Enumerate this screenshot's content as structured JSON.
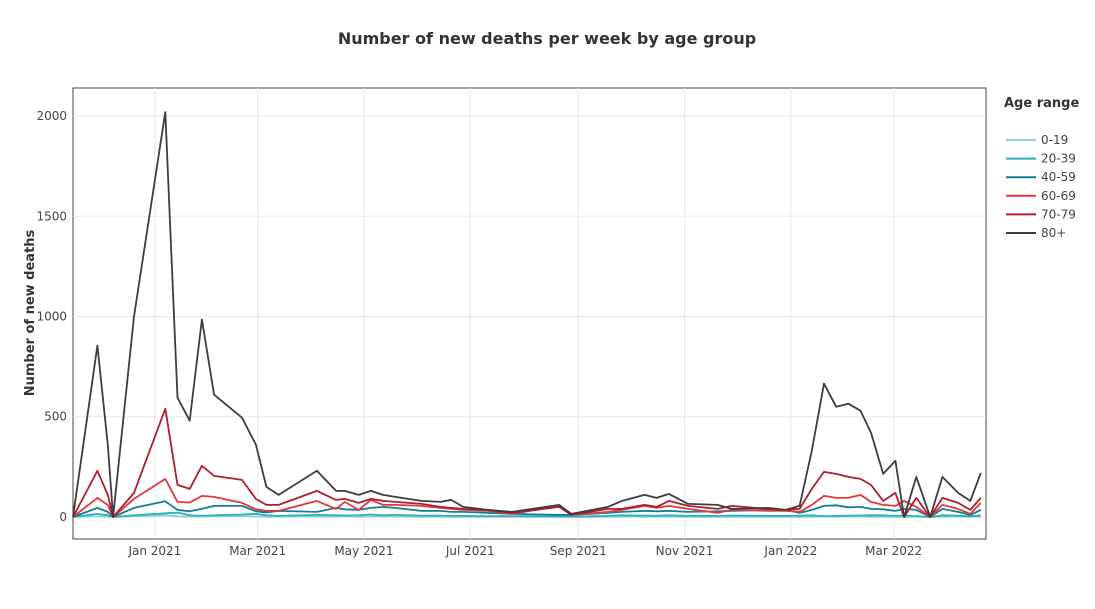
{
  "chart_data": {
    "type": "line",
    "title": "Number of new deaths per week by age group",
    "xlabel": "",
    "ylabel": "Number of new deaths",
    "x_range": [
      "2020-11-15",
      "2022-04-23"
    ],
    "ylim": [
      -110,
      2140
    ],
    "y_ticks": [
      0,
      500,
      1000,
      1500,
      2000
    ],
    "x_ticks": [
      {
        "date": "2021-01-01",
        "label": "Jan 2021"
      },
      {
        "date": "2021-03-01",
        "label": "Mar 2021"
      },
      {
        "date": "2021-05-01",
        "label": "May 2021"
      },
      {
        "date": "2021-07-01",
        "label": "Jul 2021"
      },
      {
        "date": "2021-09-01",
        "label": "Sep 2021"
      },
      {
        "date": "2021-11-01",
        "label": "Nov 2021"
      },
      {
        "date": "2022-01-01",
        "label": "Jan 2022"
      },
      {
        "date": "2022-03-01",
        "label": "Mar 2022"
      }
    ],
    "grid": true,
    "legend_title": "Age range",
    "legend_position": "right",
    "x": [
      "2020-11-15",
      "2020-11-29",
      "2020-12-05",
      "2020-12-08",
      "2020-12-20",
      "2021-01-07",
      "2021-01-14",
      "2021-01-21",
      "2021-01-28",
      "2021-02-04",
      "2021-02-20",
      "2021-02-28",
      "2021-03-06",
      "2021-03-13",
      "2021-04-04",
      "2021-04-15",
      "2021-04-20",
      "2021-04-28",
      "2021-05-05",
      "2021-05-12",
      "2021-05-19",
      "2021-06-03",
      "2021-06-14",
      "2021-06-20",
      "2021-06-27",
      "2021-07-11",
      "2021-07-25",
      "2021-08-21",
      "2021-08-28",
      "2021-09-18",
      "2021-09-26",
      "2021-10-09",
      "2021-10-16",
      "2021-10-23",
      "2021-11-03",
      "2021-11-20",
      "2021-11-28",
      "2021-12-19",
      "2021-12-29",
      "2022-01-06",
      "2022-01-13",
      "2022-01-20",
      "2022-01-27",
      "2022-02-03",
      "2022-02-10",
      "2022-02-16",
      "2022-02-23",
      "2022-03-02",
      "2022-03-07",
      "2022-03-14",
      "2022-03-22",
      "2022-03-29",
      "2022-04-07",
      "2022-04-14",
      "2022-04-20"
    ],
    "series": [
      {
        "name": "0-19",
        "color": "#8ecfdb",
        "values": [
          0,
          3,
          2,
          0,
          3,
          8,
          3,
          2,
          2,
          3,
          4,
          2,
          1,
          2,
          2,
          1,
          3,
          1,
          2,
          2,
          2,
          1,
          2,
          1,
          1,
          1,
          1,
          1,
          0,
          1,
          2,
          1,
          2,
          1,
          1,
          1,
          1,
          1,
          1,
          1,
          1,
          2,
          2,
          2,
          2,
          1,
          1,
          1,
          1,
          2,
          0,
          1,
          2,
          1,
          1
        ]
      },
      {
        "name": "20-39",
        "color": "#2bb0c0",
        "values": [
          0,
          15,
          8,
          0,
          8,
          18,
          22,
          8,
          5,
          8,
          12,
          15,
          8,
          5,
          10,
          8,
          7,
          8,
          12,
          8,
          10,
          6,
          6,
          5,
          5,
          4,
          4,
          3,
          2,
          5,
          8,
          6,
          6,
          8,
          5,
          5,
          7,
          5,
          5,
          6,
          8,
          4,
          5,
          6,
          7,
          8,
          8,
          5,
          7,
          4,
          0,
          8,
          6,
          3,
          8
        ]
      },
      {
        "name": "40-59",
        "color": "#137d93",
        "values": [
          0,
          45,
          25,
          0,
          45,
          78,
          35,
          28,
          40,
          55,
          55,
          28,
          22,
          30,
          25,
          45,
          38,
          35,
          45,
          50,
          45,
          30,
          30,
          25,
          25,
          20,
          15,
          10,
          10,
          20,
          25,
          30,
          28,
          30,
          25,
          28,
          30,
          35,
          35,
          20,
          35,
          55,
          58,
          48,
          50,
          40,
          38,
          30,
          40,
          35,
          0,
          40,
          25,
          10,
          35
        ]
      },
      {
        "name": "60-69",
        "color": "#e0383d",
        "values": [
          0,
          95,
          60,
          0,
          90,
          190,
          75,
          72,
          105,
          100,
          70,
          38,
          30,
          30,
          80,
          40,
          75,
          35,
          85,
          60,
          60,
          55,
          45,
          40,
          35,
          30,
          15,
          55,
          10,
          25,
          35,
          55,
          45,
          55,
          40,
          20,
          35,
          30,
          30,
          25,
          60,
          105,
          95,
          95,
          110,
          75,
          60,
          55,
          80,
          50,
          0,
          60,
          40,
          15,
          70
        ]
      },
      {
        "name": "70-79",
        "color": "#b01e2e",
        "values": [
          0,
          230,
          110,
          0,
          120,
          540,
          160,
          140,
          255,
          205,
          185,
          90,
          60,
          60,
          130,
          85,
          90,
          70,
          90,
          80,
          75,
          65,
          50,
          45,
          40,
          35,
          20,
          50,
          10,
          40,
          40,
          60,
          50,
          80,
          55,
          40,
          55,
          40,
          35,
          40,
          140,
          225,
          215,
          200,
          190,
          160,
          80,
          120,
          0,
          95,
          0,
          95,
          70,
          35,
          95
        ]
      },
      {
        "name": "80+",
        "color": "#3d3d3d",
        "values": [
          0,
          855,
          360,
          0,
          1000,
          2020,
          595,
          480,
          985,
          610,
          495,
          360,
          150,
          110,
          230,
          130,
          130,
          110,
          130,
          110,
          100,
          80,
          75,
          85,
          50,
          35,
          25,
          60,
          15,
          50,
          80,
          110,
          95,
          115,
          65,
          60,
          40,
          45,
          35,
          55,
          330,
          665,
          550,
          565,
          530,
          420,
          215,
          280,
          0,
          200,
          0,
          200,
          120,
          80,
          220
        ]
      }
    ]
  }
}
